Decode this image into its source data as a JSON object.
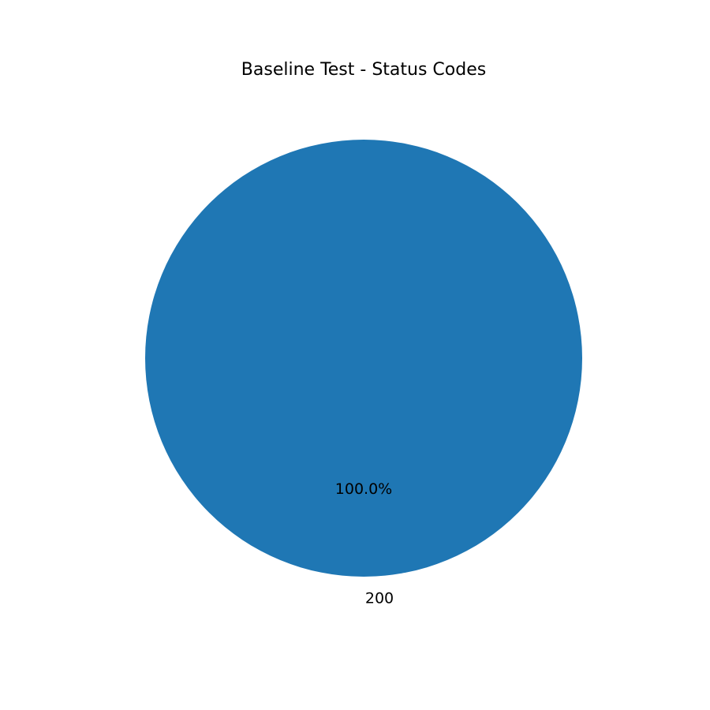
{
  "chart_data": {
    "type": "pie",
    "title": "Baseline Test - Status Codes",
    "categories": [
      "200"
    ],
    "values": [
      100
    ],
    "percent_labels": [
      "100.0%"
    ],
    "colors": [
      "#1f77b4"
    ],
    "legend": "none"
  }
}
